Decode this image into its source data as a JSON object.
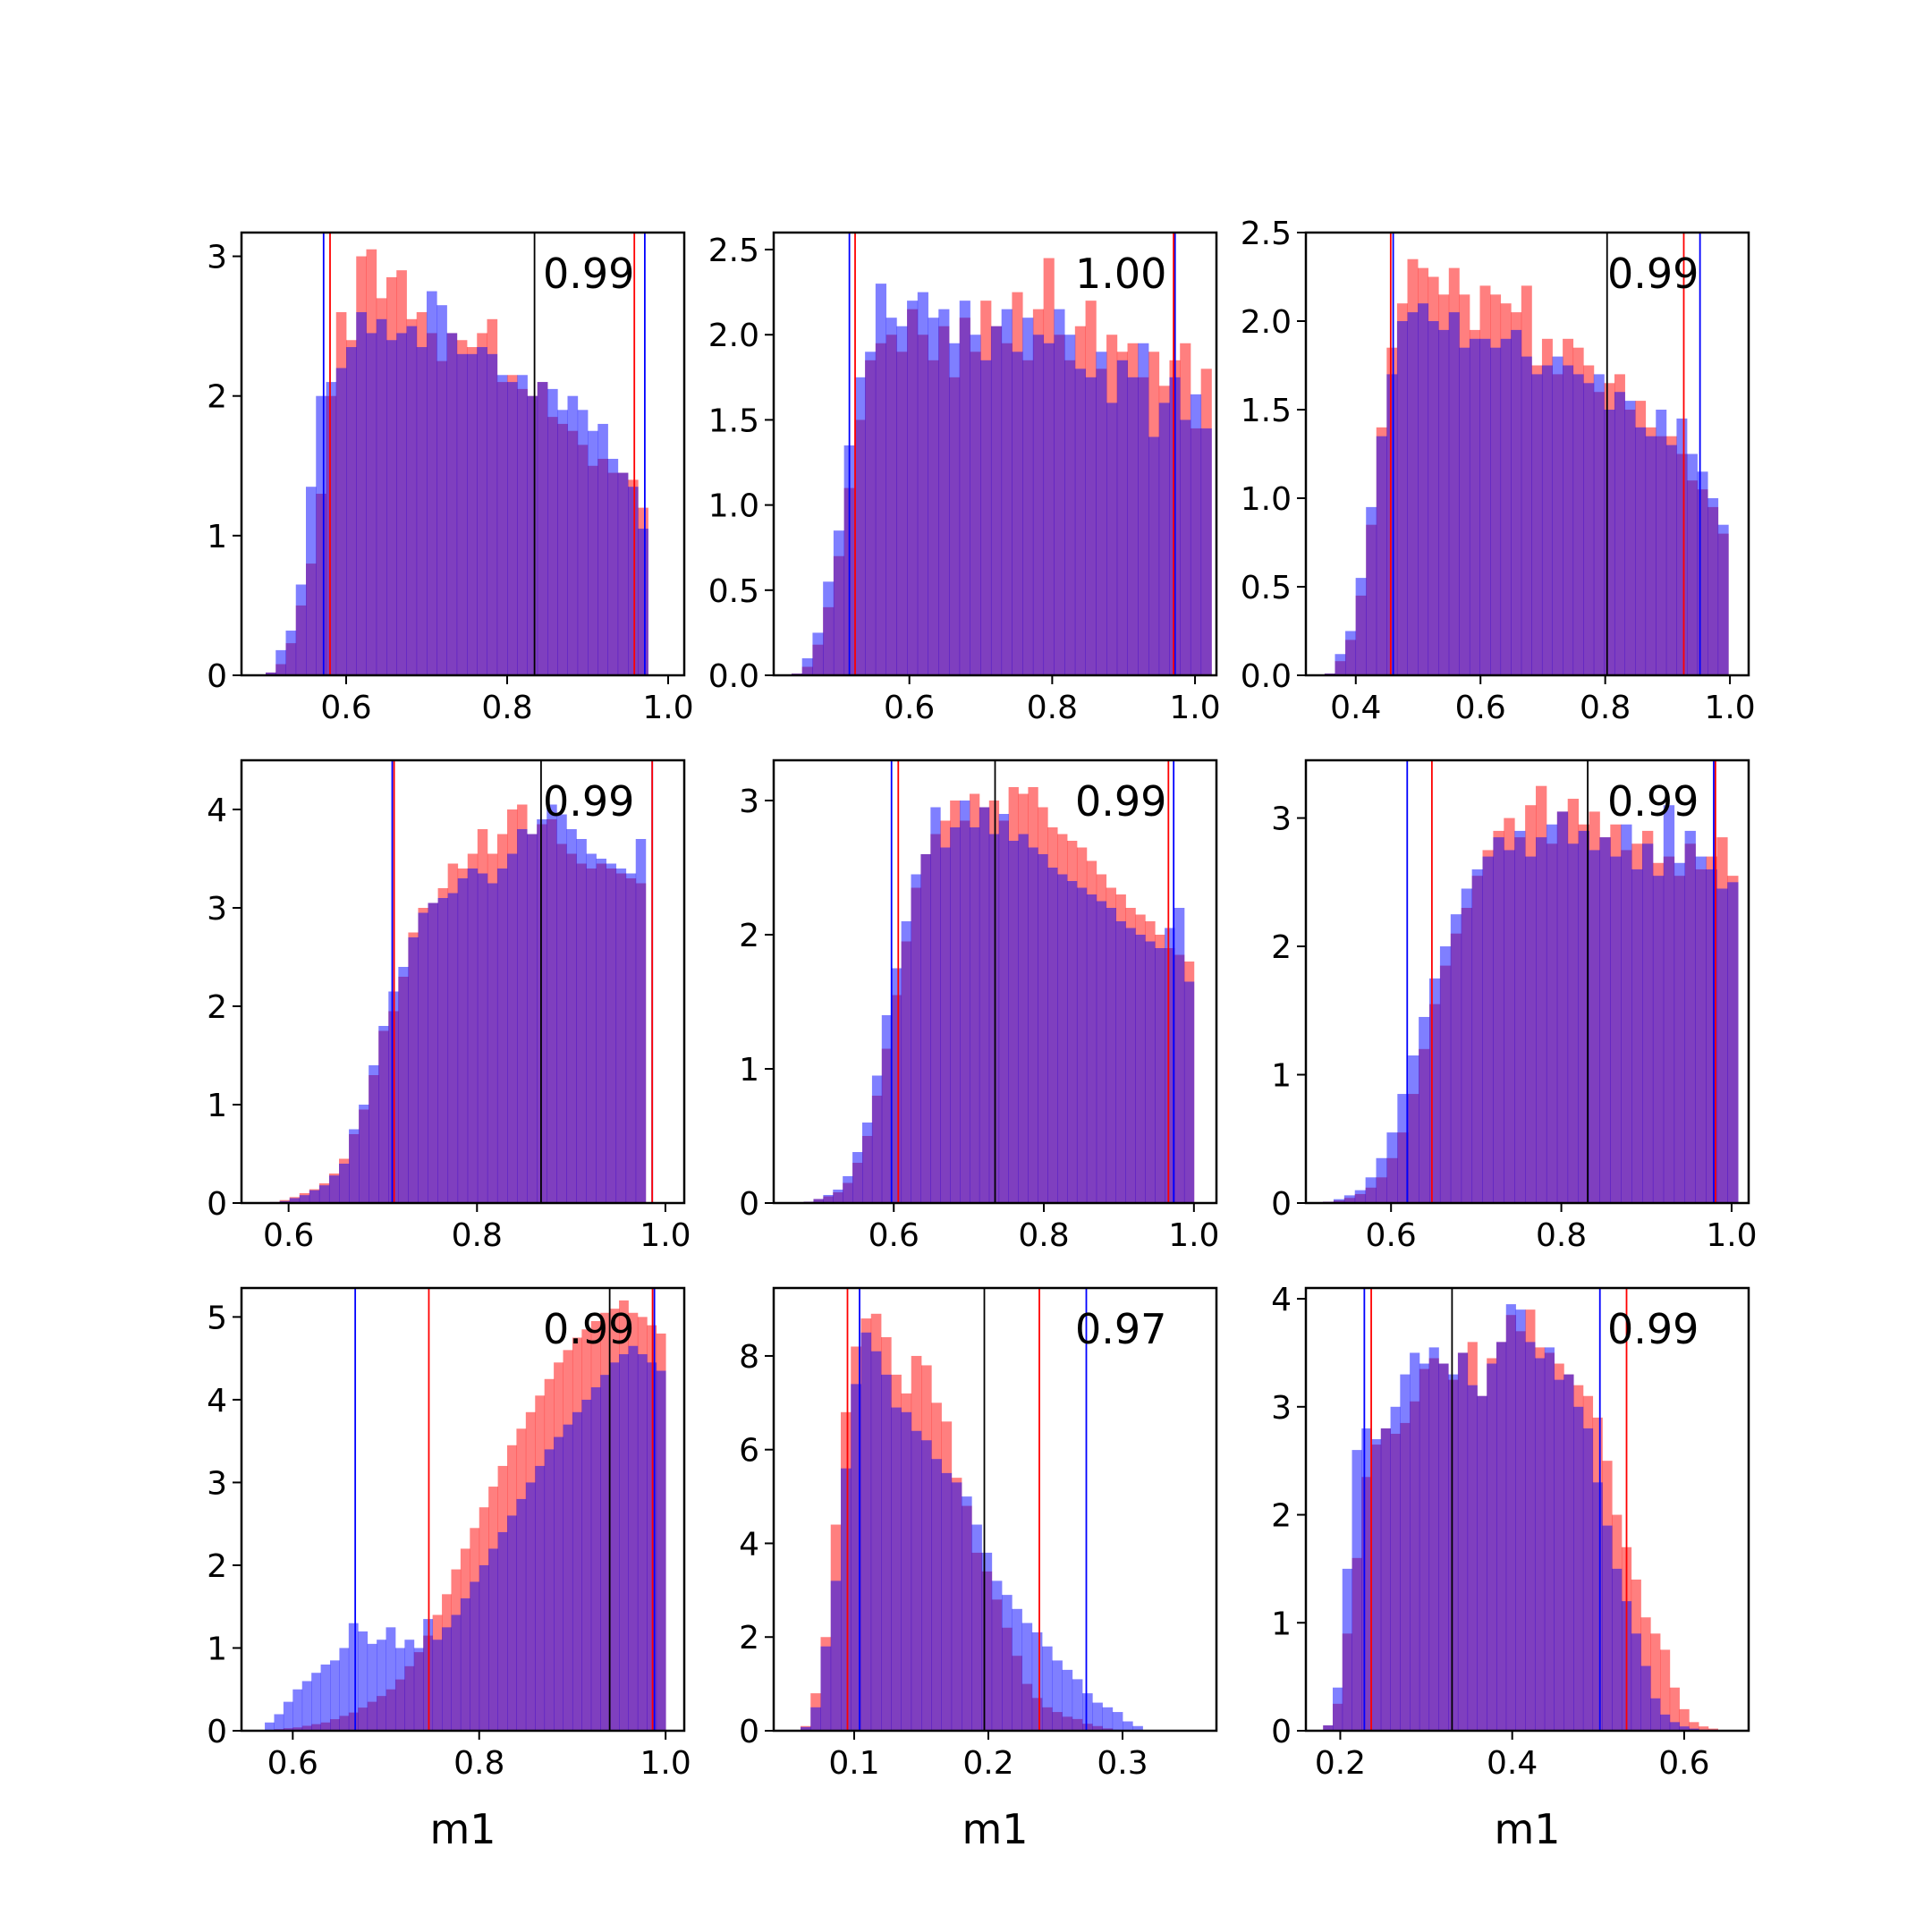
{
  "colors": {
    "red": "#ff0000",
    "blue": "#0000ff",
    "black": "#000000",
    "overlap": "#8040c0"
  },
  "chart_data": [
    {
      "type": "bar",
      "xlim": [
        0.47,
        1.02
      ],
      "ylim": [
        0,
        3.17
      ],
      "xticks": [
        "0.6",
        "0.8",
        "1.0"
      ],
      "yticks": [
        "0",
        "1",
        "2",
        "3"
      ],
      "score": "0.99",
      "xlabel": "",
      "lines": {
        "red": [
          0.58,
          0.958
        ],
        "blue": [
          0.572,
          0.971
        ],
        "black": 0.834
      },
      "bins": {
        "start": 0.5,
        "width": 0.0125
      },
      "series": [
        {
          "color": "red",
          "values": [
            0.02,
            0.08,
            0.23,
            0.5,
            0.8,
            1.3,
            2.0,
            2.6,
            2.4,
            3.0,
            3.05,
            2.7,
            2.85,
            2.9,
            2.55,
            2.6,
            2.45,
            2.25,
            2.45,
            2.4,
            2.35,
            2.45,
            2.55,
            2.1,
            2.15,
            2.05,
            2.0,
            2.1,
            1.85,
            1.8,
            1.75,
            1.65,
            1.5,
            1.55,
            1.45,
            1.45,
            1.4,
            1.2
          ]
        },
        {
          "color": "blue",
          "values": [
            0.02,
            0.18,
            0.32,
            0.65,
            1.35,
            2.0,
            2.1,
            2.2,
            2.35,
            2.6,
            2.45,
            2.55,
            2.4,
            2.45,
            2.5,
            2.35,
            2.75,
            2.65,
            2.45,
            2.3,
            2.3,
            2.35,
            2.3,
            2.15,
            2.1,
            2.15,
            2.0,
            2.1,
            2.05,
            1.9,
            2.0,
            1.9,
            1.75,
            1.8,
            1.55,
            1.45,
            1.35,
            1.05
          ]
        }
      ]
    },
    {
      "type": "bar",
      "xlim": [
        0.41,
        1.03
      ],
      "ylim": [
        0,
        2.6
      ],
      "xticks": [
        "0.6",
        "0.8",
        "1.0"
      ],
      "yticks": [
        "0.0",
        "0.5",
        "1.0",
        "1.5",
        "2.0",
        "2.5"
      ],
      "score": "1.00",
      "xlabel": "",
      "lines": {
        "red": [
          0.524,
          0.97
        ],
        "blue": [
          0.516,
          0.972
        ],
        "black": null
      },
      "bins": {
        "start": 0.435,
        "width": 0.0147
      },
      "series": [
        {
          "color": "red",
          "values": [
            0.01,
            0.05,
            0.18,
            0.4,
            0.7,
            1.1,
            1.5,
            1.85,
            1.95,
            2.0,
            1.9,
            2.15,
            2.0,
            1.85,
            2.05,
            1.75,
            2.1,
            1.9,
            2.2,
            2.05,
            1.95,
            2.25,
            1.85,
            2.15,
            2.45,
            2.0,
            1.85,
            2.05,
            2.2,
            1.8,
            2.0,
            1.9,
            1.95,
            1.75,
            1.9,
            1.7,
            1.85,
            1.95,
            1.45,
            1.8
          ]
        },
        {
          "color": "blue",
          "values": [
            0.01,
            0.1,
            0.25,
            0.55,
            0.85,
            1.35,
            1.75,
            1.9,
            2.3,
            2.1,
            2.05,
            2.2,
            2.25,
            2.1,
            2.15,
            1.95,
            2.2,
            2.0,
            1.85,
            2.05,
            2.15,
            1.9,
            2.1,
            2.0,
            1.95,
            2.15,
            2.0,
            1.8,
            1.75,
            1.9,
            1.6,
            1.85,
            1.75,
            1.95,
            1.4,
            1.6,
            1.75,
            1.5,
            1.65,
            1.45
          ]
        }
      ]
    },
    {
      "type": "bar",
      "xlim": [
        0.32,
        1.03
      ],
      "ylim": [
        0,
        2.5
      ],
      "xticks": [
        "0.4",
        "0.6",
        "0.8",
        "1.0"
      ],
      "yticks": [
        "0.0",
        "0.5",
        "1.0",
        "1.5",
        "2.0",
        "2.5"
      ],
      "score": "0.99",
      "xlabel": "",
      "lines": {
        "red": [
          0.456,
          0.926
        ],
        "blue": [
          0.46,
          0.952
        ],
        "black": 0.803
      },
      "bins": {
        "start": 0.35,
        "width": 0.0166
      },
      "series": [
        {
          "color": "red",
          "values": [
            0.01,
            0.08,
            0.2,
            0.45,
            0.85,
            1.4,
            1.85,
            2.1,
            2.35,
            2.3,
            2.25,
            2.15,
            2.3,
            2.15,
            1.95,
            2.2,
            2.15,
            2.1,
            2.05,
            2.2,
            1.75,
            1.9,
            1.7,
            1.9,
            1.85,
            1.75,
            1.6,
            1.65,
            1.7,
            1.5,
            1.55,
            1.4,
            1.35,
            1.35,
            1.25,
            1.1,
            1.05,
            0.95,
            0.8
          ]
        },
        {
          "color": "blue",
          "values": [
            0.01,
            0.12,
            0.25,
            0.55,
            0.95,
            1.35,
            1.7,
            2.0,
            2.05,
            2.1,
            2.0,
            1.95,
            2.05,
            1.85,
            1.9,
            1.9,
            1.85,
            1.9,
            1.95,
            1.8,
            1.7,
            1.75,
            1.8,
            1.75,
            1.7,
            1.65,
            1.7,
            1.5,
            1.6,
            1.55,
            1.4,
            1.35,
            1.5,
            1.3,
            1.45,
            1.25,
            1.15,
            1.0,
            0.85
          ]
        }
      ]
    },
    {
      "type": "bar",
      "xlim": [
        0.55,
        1.02
      ],
      "ylim": [
        0,
        4.5
      ],
      "xticks": [
        "0.6",
        "0.8",
        "1.0"
      ],
      "yticks": [
        "0",
        "1",
        "2",
        "3",
        "4"
      ],
      "score": "0.99",
      "xlabel": "",
      "lines": {
        "red": [
          0.712,
          0.986
        ],
        "blue": [
          0.71,
          0.986
        ],
        "black": 0.868
      },
      "bins": {
        "start": 0.58,
        "width": 0.0105
      },
      "series": [
        {
          "color": "red",
          "values": [
            0.01,
            0.03,
            0.06,
            0.1,
            0.14,
            0.2,
            0.3,
            0.45,
            0.7,
            0.95,
            1.3,
            1.75,
            1.95,
            2.3,
            2.75,
            3.0,
            3.05,
            3.2,
            3.45,
            3.4,
            3.55,
            3.8,
            3.55,
            3.75,
            4.0,
            4.05,
            3.75,
            3.85,
            3.9,
            3.65,
            3.55,
            3.45,
            3.4,
            3.45,
            3.4,
            3.35,
            3.3,
            3.25
          ]
        },
        {
          "color": "blue",
          "values": [
            0.01,
            0.02,
            0.05,
            0.08,
            0.13,
            0.18,
            0.28,
            0.4,
            0.75,
            1.0,
            1.4,
            1.8,
            2.15,
            2.4,
            2.7,
            2.95,
            3.05,
            3.1,
            3.15,
            3.3,
            3.4,
            3.35,
            3.25,
            3.4,
            3.55,
            3.8,
            3.75,
            3.9,
            4.05,
            3.95,
            3.8,
            3.7,
            3.55,
            3.5,
            3.45,
            3.4,
            3.35,
            3.7
          ]
        }
      ]
    },
    {
      "type": "bar",
      "xlim": [
        0.44,
        1.03
      ],
      "ylim": [
        0,
        3.3
      ],
      "xticks": [
        "0.6",
        "0.8",
        "1.0"
      ],
      "yticks": [
        "0",
        "1",
        "2",
        "3"
      ],
      "score": "0.99",
      "xlabel": "",
      "lines": {
        "red": [
          0.606,
          0.966
        ],
        "blue": [
          0.597,
          0.973
        ],
        "black": 0.735
      },
      "bins": {
        "start": 0.48,
        "width": 0.013
      },
      "series": [
        {
          "color": "red",
          "values": [
            0.01,
            0.03,
            0.05,
            0.08,
            0.15,
            0.3,
            0.5,
            0.8,
            1.15,
            1.55,
            1.95,
            2.35,
            2.6,
            2.75,
            2.85,
            3.0,
            2.85,
            3.05,
            2.95,
            3.0,
            2.85,
            3.1,
            3.05,
            3.1,
            2.95,
            2.8,
            2.75,
            2.7,
            2.65,
            2.55,
            2.45,
            2.35,
            2.3,
            2.2,
            2.15,
            2.1,
            2.0,
            1.9,
            1.85,
            1.8
          ]
        },
        {
          "color": "blue",
          "values": [
            0.01,
            0.03,
            0.06,
            0.1,
            0.2,
            0.38,
            0.6,
            0.95,
            1.4,
            1.75,
            2.1,
            2.45,
            2.6,
            2.95,
            2.65,
            2.8,
            3.0,
            2.8,
            2.95,
            2.75,
            2.9,
            2.7,
            2.75,
            2.65,
            2.6,
            2.5,
            2.45,
            2.4,
            2.35,
            2.3,
            2.25,
            2.2,
            2.1,
            2.05,
            2.0,
            1.95,
            1.9,
            2.05,
            2.2,
            1.65
          ]
        }
      ]
    },
    {
      "type": "bar",
      "xlim": [
        0.5,
        1.02
      ],
      "ylim": [
        0,
        3.45
      ],
      "xticks": [
        "0.6",
        "0.8",
        "1.0"
      ],
      "yticks": [
        "0",
        "1",
        "2",
        "3"
      ],
      "score": "0.99",
      "xlabel": "",
      "lines": {
        "red": [
          0.648,
          0.981
        ],
        "blue": [
          0.619,
          0.979
        ],
        "black": 0.831
      },
      "bins": {
        "start": 0.52,
        "width": 0.0125
      },
      "series": [
        {
          "color": "red",
          "values": [
            0.01,
            0.02,
            0.04,
            0.07,
            0.12,
            0.2,
            0.35,
            0.55,
            0.85,
            1.2,
            1.55,
            1.85,
            2.1,
            2.3,
            2.55,
            2.75,
            2.9,
            3.0,
            2.85,
            3.1,
            3.25,
            2.8,
            3.05,
            3.15,
            2.95,
            3.05,
            2.85,
            2.95,
            2.75,
            2.8,
            2.9,
            2.65,
            2.7,
            2.55,
            2.8,
            2.6,
            2.7,
            2.85,
            2.55
          ]
        },
        {
          "color": "blue",
          "values": [
            0.01,
            0.03,
            0.06,
            0.1,
            0.2,
            0.35,
            0.55,
            0.85,
            1.15,
            1.45,
            1.75,
            2.0,
            2.25,
            2.45,
            2.6,
            2.7,
            2.85,
            2.75,
            2.9,
            2.7,
            2.85,
            2.95,
            3.05,
            2.8,
            2.9,
            2.75,
            2.85,
            2.7,
            2.95,
            2.6,
            2.8,
            2.55,
            3.1,
            2.65,
            2.9,
            2.7,
            2.6,
            2.45,
            2.5
          ]
        }
      ]
    },
    {
      "type": "bar",
      "xlim": [
        0.545,
        1.02
      ],
      "ylim": [
        0,
        5.35
      ],
      "xticks": [
        "0.6",
        "0.8",
        "1.0"
      ],
      "yticks": [
        "0",
        "1",
        "2",
        "3",
        "4",
        "5"
      ],
      "score": "0.99",
      "xlabel": "m1",
      "lines": {
        "red": [
          0.746,
          0.986
        ],
        "blue": [
          0.667,
          0.988
        ],
        "black": 0.94
      },
      "bins": {
        "start": 0.57,
        "width": 0.01
      },
      "series": [
        {
          "color": "red",
          "values": [
            0.01,
            0.02,
            0.03,
            0.04,
            0.06,
            0.08,
            0.1,
            0.14,
            0.18,
            0.22,
            0.28,
            0.35,
            0.42,
            0.5,
            0.62,
            0.78,
            0.95,
            1.15,
            1.4,
            1.65,
            1.95,
            2.2,
            2.45,
            2.7,
            2.95,
            3.2,
            3.45,
            3.65,
            3.85,
            4.05,
            4.25,
            4.45,
            4.6,
            4.75,
            4.85,
            4.95,
            5.05,
            5.1,
            5.2,
            5.05,
            5.0,
            4.9,
            4.8
          ]
        },
        {
          "color": "blue",
          "values": [
            0.1,
            0.2,
            0.35,
            0.5,
            0.6,
            0.7,
            0.8,
            0.85,
            1.0,
            1.3,
            1.2,
            1.05,
            1.1,
            1.25,
            1.0,
            1.1,
            1.0,
            1.35,
            1.1,
            1.25,
            1.4,
            1.6,
            1.8,
            2.0,
            2.2,
            2.4,
            2.6,
            2.8,
            3.0,
            3.2,
            3.4,
            3.55,
            3.7,
            3.85,
            4.0,
            4.15,
            4.3,
            4.45,
            4.55,
            4.65,
            4.55,
            4.45,
            4.35
          ]
        }
      ]
    },
    {
      "type": "bar",
      "xlim": [
        0.04,
        0.37
      ],
      "ylim": [
        0,
        9.45
      ],
      "xticks": [
        "0.1",
        "0.2",
        "0.3"
      ],
      "yticks": [
        "0",
        "2",
        "4",
        "6",
        "8"
      ],
      "score": "0.97",
      "xlabel": "m1",
      "lines": {
        "red": [
          0.095,
          0.238
        ],
        "blue": [
          0.104,
          0.273
        ],
        "black": 0.197
      },
      "bins": {
        "start": 0.06,
        "width": 0.0075
      },
      "series": [
        {
          "color": "red",
          "values": [
            0.1,
            0.8,
            2.0,
            4.4,
            6.8,
            8.2,
            8.8,
            8.9,
            8.4,
            7.6,
            7.2,
            8.0,
            7.8,
            7.0,
            6.6,
            5.4,
            4.8,
            3.8,
            3.4,
            2.8,
            2.2,
            1.6,
            1.0,
            0.7,
            0.5,
            0.4,
            0.3,
            0.25,
            0.15,
            0.1,
            0.05,
            0.02,
            0.01,
            0.01
          ]
        },
        {
          "color": "blue",
          "values": [
            0.08,
            0.5,
            1.8,
            3.2,
            5.6,
            7.4,
            8.5,
            8.1,
            7.6,
            6.9,
            6.8,
            6.4,
            6.2,
            5.8,
            5.5,
            5.3,
            5.0,
            4.4,
            3.8,
            3.2,
            2.9,
            2.6,
            2.3,
            2.1,
            1.8,
            1.5,
            1.3,
            1.1,
            0.8,
            0.6,
            0.5,
            0.4,
            0.2,
            0.1
          ]
        }
      ]
    },
    {
      "type": "bar",
      "xlim": [
        0.16,
        0.675
      ],
      "ylim": [
        0,
        4.1
      ],
      "xticks": [
        "0.2",
        "0.4",
        "0.6"
      ],
      "yticks": [
        "0",
        "1",
        "2",
        "3",
        "4"
      ],
      "score": "0.99",
      "xlabel": "m1",
      "lines": {
        "red": [
          0.236,
          0.533
        ],
        "blue": [
          0.228,
          0.502
        ],
        "black": 0.33
      },
      "bins": {
        "start": 0.18,
        "width": 0.0112
      },
      "series": [
        {
          "color": "red",
          "values": [
            0.05,
            0.25,
            0.9,
            1.6,
            2.35,
            2.65,
            2.8,
            2.75,
            2.85,
            3.05,
            3.35,
            3.45,
            3.4,
            3.25,
            3.5,
            3.6,
            3.1,
            3.45,
            3.6,
            3.85,
            3.7,
            3.9,
            3.55,
            3.5,
            3.4,
            3.3,
            3.2,
            3.1,
            2.9,
            2.5,
            2.0,
            1.7,
            1.4,
            1.05,
            0.9,
            0.75,
            0.4,
            0.2,
            0.08,
            0.04,
            0.02
          ]
        },
        {
          "color": "blue",
          "values": [
            0.05,
            0.4,
            1.5,
            2.6,
            2.8,
            2.7,
            2.8,
            3.0,
            3.3,
            3.5,
            3.4,
            3.55,
            3.4,
            3.3,
            3.5,
            3.2,
            3.1,
            3.4,
            3.6,
            3.95,
            3.9,
            3.6,
            3.45,
            3.55,
            3.25,
            3.3,
            3.0,
            2.8,
            2.3,
            1.9,
            1.5,
            1.2,
            0.9,
            0.6,
            0.3,
            0.15,
            0.08,
            0.04,
            0.02,
            0.01,
            0.01
          ]
        }
      ]
    }
  ]
}
